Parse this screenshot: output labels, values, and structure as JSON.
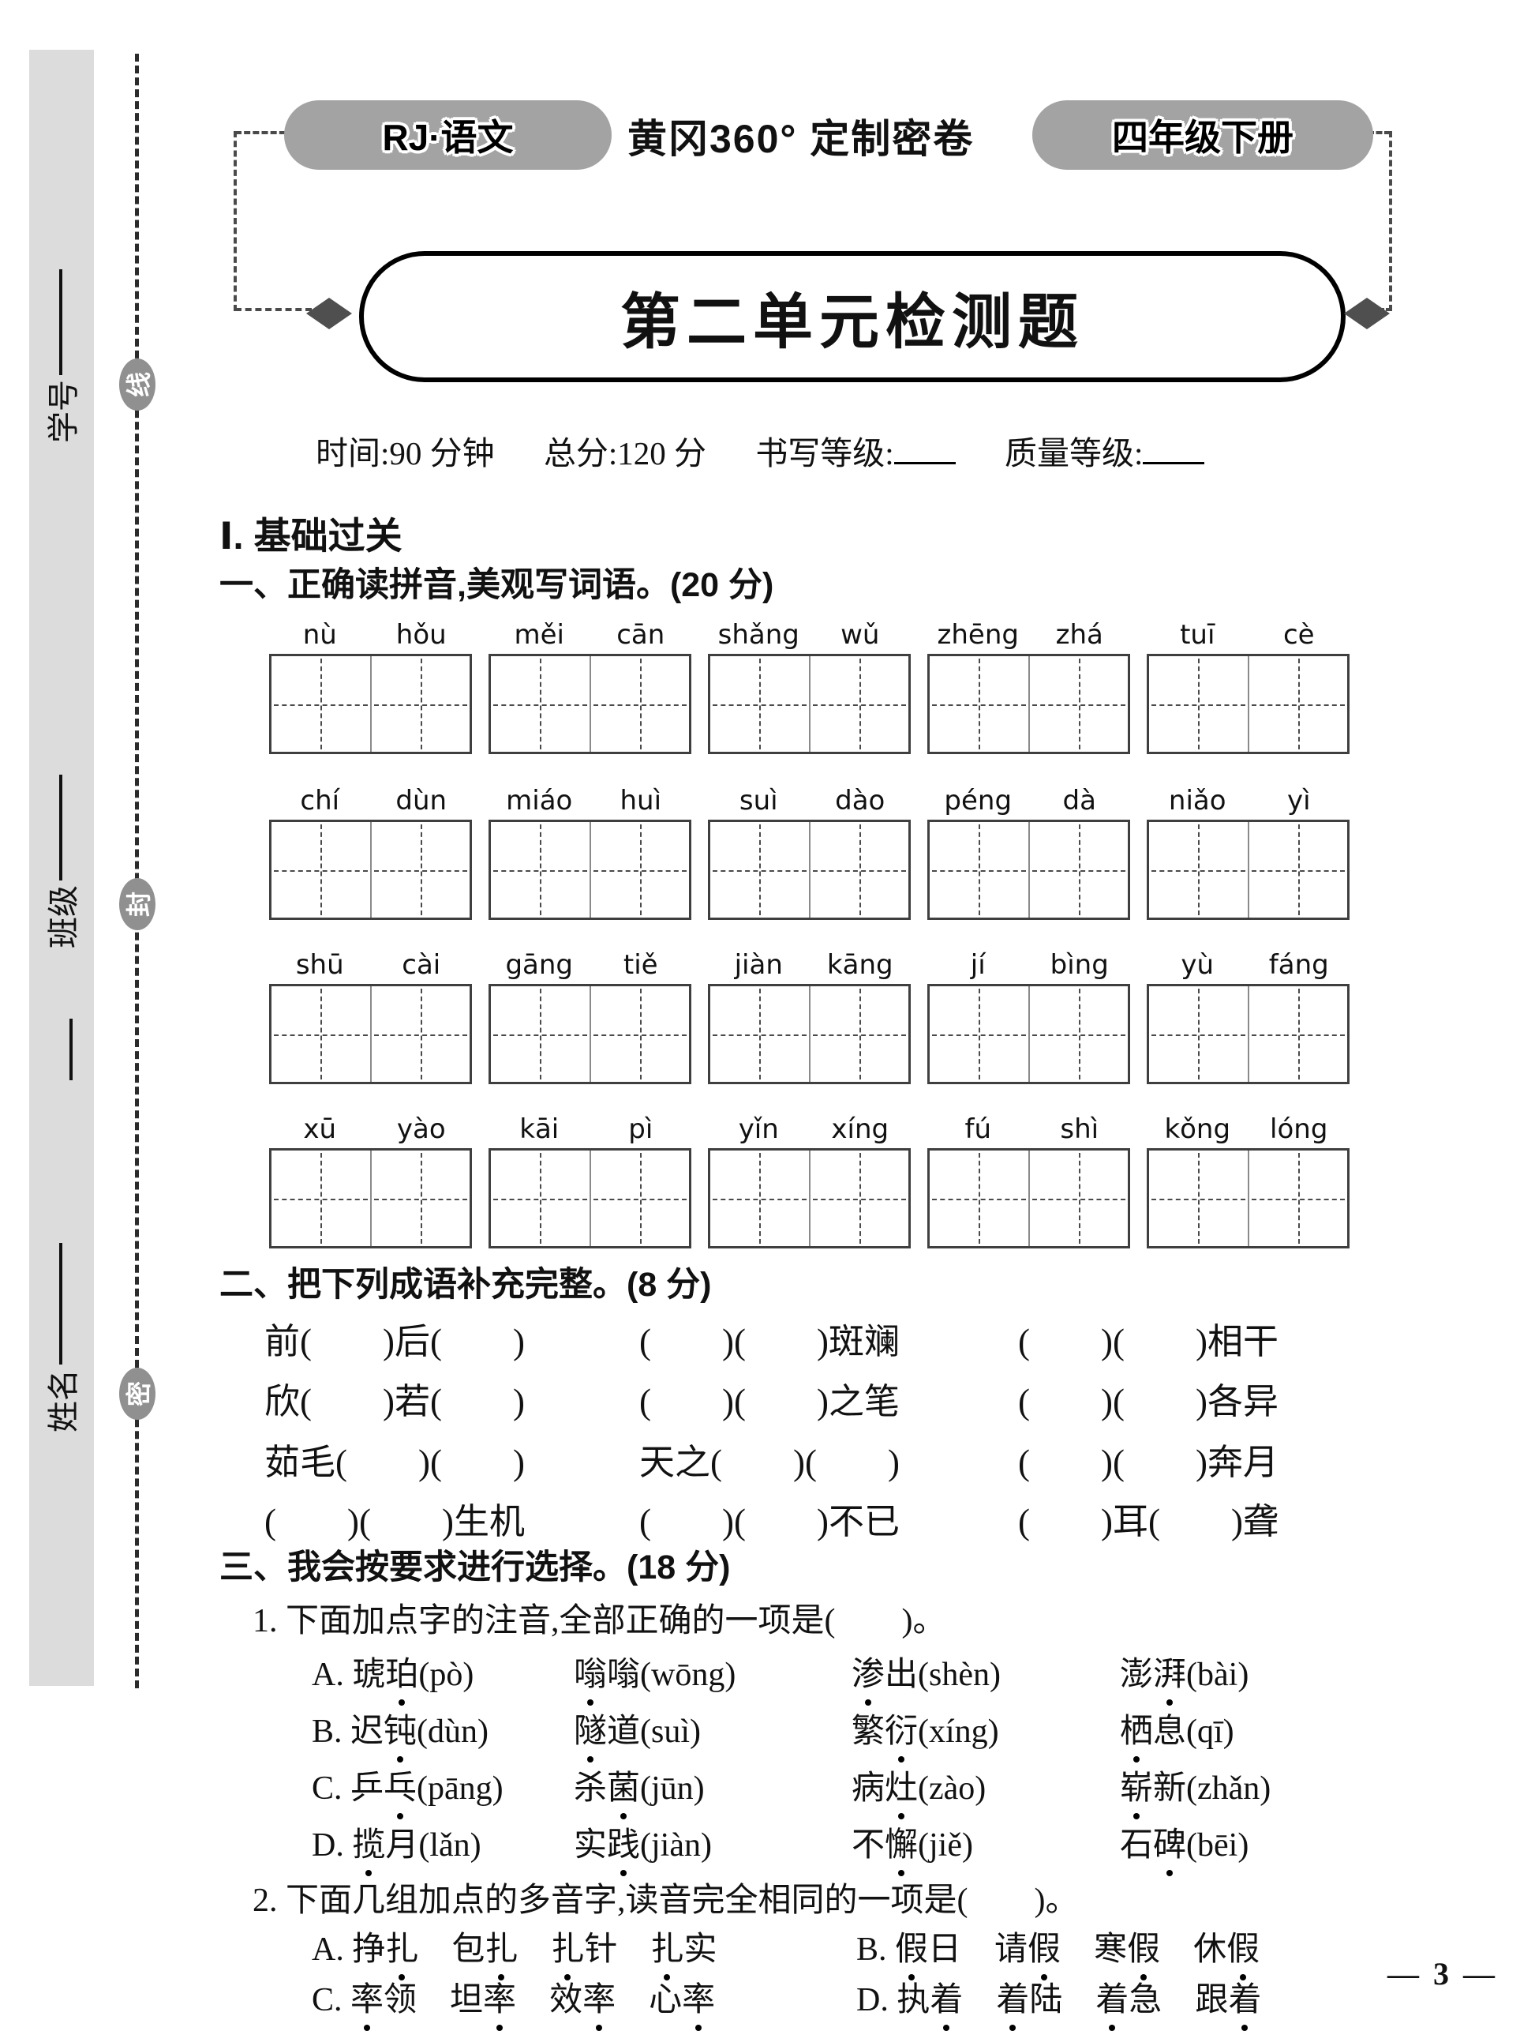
{
  "header": {
    "subject_pill": "RJ·语文",
    "series_title": "黄冈360° 定制密卷",
    "grade_pill": "四年级下册"
  },
  "seal": {
    "fields": [
      {
        "label": "学号"
      },
      {
        "label": "班级"
      },
      {
        "label": "姓名"
      }
    ],
    "badges": [
      "线",
      "封",
      "密"
    ]
  },
  "title": "第二单元检测题",
  "info": {
    "time": "时间:90 分钟",
    "total": "总分:120 分",
    "writing": "书写等级:",
    "quality": "质量等级:"
  },
  "part1_heading": "Ⅰ. 基础过关",
  "q1": {
    "heading": "一、正确读拼音,美观写词语。(20 分)",
    "rows": [
      [
        "nù",
        "hǒu",
        "měi",
        "cān",
        "shǎng",
        "wǔ",
        "zhēng",
        "zhá",
        "tuī",
        "cè"
      ],
      [
        "chí",
        "dùn",
        "miáo",
        "huì",
        "suì",
        "dào",
        "péng",
        "dà",
        "niǎo",
        "yì"
      ],
      [
        "shū",
        "cài",
        "gāng",
        "tiě",
        "jiàn",
        "kāng",
        "jí",
        "bìng",
        "yù",
        "fáng"
      ],
      [
        "xū",
        "yào",
        "kāi",
        "pì",
        "yǐn",
        "xíng",
        "fú",
        "shì",
        "kǒng",
        "lóng"
      ]
    ]
  },
  "q2": {
    "heading": "二、把下列成语补充完整。(8 分)",
    "rows": [
      [
        "前(　　)后(　　)",
        "(　　)(　　)斑斓",
        "(　　)(　　)相干"
      ],
      [
        "欣(　　)若(　　)",
        "(　　)(　　)之笔",
        "(　　)(　　)各异"
      ],
      [
        "茹毛(　　)(　　)",
        "天之(　　)(　　)",
        "(　　)(　　)奔月"
      ],
      [
        "(　　)(　　)生机",
        "(　　)(　　)不已",
        "(　　)耳(　　)聋"
      ]
    ]
  },
  "q3": {
    "heading": "三、我会按要求进行选择。(18 分)",
    "sub1": {
      "heading": "1. 下面加点字的注音,全部正确的一项是(　　)。",
      "options": [
        {
          "label": "A.",
          "items": [
            "琥*珀*(pò)",
            "*嗡*嗡(wōng)",
            "*渗*出(shèn)",
            "澎*湃*(bài)"
          ]
        },
        {
          "label": "B.",
          "items": [
            "迟*钝*(dùn)",
            "*隧*道(suì)",
            "繁*衍*(xíng)",
            "*栖*息(qī)"
          ]
        },
        {
          "label": "C.",
          "items": [
            "乒*乓*(pāng)",
            "杀*菌*(jūn)",
            "病*灶*(zào)",
            "*崭*新(zhǎn)"
          ]
        },
        {
          "label": "D.",
          "items": [
            "*揽*月(lǎn)",
            "实*践*(jiàn)",
            "不*懈*(jiě)",
            "石*碑*(bēi)"
          ]
        }
      ]
    },
    "sub2": {
      "heading": "2. 下面几组加点的多音字,读音完全相同的一项是(　　)。",
      "options": [
        {
          "label": "A.",
          "text": "挣*扎*　包*扎*　*扎*针　*扎*实"
        },
        {
          "label": "B.",
          "text": "*假*日　请*假*　寒*假*　休*假*"
        },
        {
          "label": "C.",
          "text": "*率*领　坦*率*　效*率*　心*率*"
        },
        {
          "label": "D.",
          "text": "执*着*　*着*陆　*着*急　跟*着*"
        }
      ]
    }
  },
  "page_number": "— 3 —"
}
